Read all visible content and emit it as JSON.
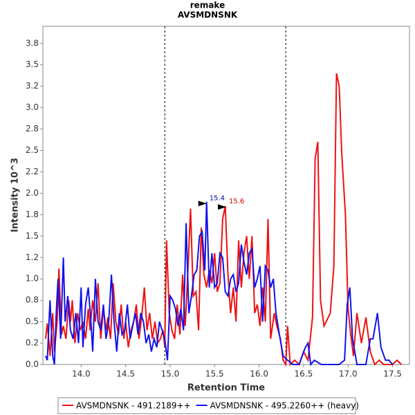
{
  "chart_data": {
    "type": "line",
    "title": "remake",
    "subtitle": "AVSMDNSNK",
    "x_label": "Retention Time",
    "y_label": "Intensity 10^3",
    "xlim": [
      13.57,
      17.69
    ],
    "ylim": [
      0,
      3.95
    ],
    "xticks": [
      {
        "value": 14,
        "label": "14.0"
      },
      14.5,
      {
        "value": 15,
        "label": "15.0"
      },
      15.5,
      {
        "value": 16,
        "label": "16.0"
      },
      16.5,
      {
        "value": 17,
        "label": "17.0"
      },
      17.5
    ],
    "yticks": [
      {
        "value": 0,
        "label": "0.0"
      },
      {
        "value": 0.25,
        "label": "0.2"
      },
      {
        "value": 0.5,
        "label": "0.5"
      },
      {
        "value": 0.75,
        "label": "0.8"
      },
      {
        "value": 1,
        "label": "1.0"
      },
      {
        "value": 1.25,
        "label": "1.2"
      },
      {
        "value": 1.5,
        "label": "1.5"
      },
      {
        "value": 1.75,
        "label": "1.8"
      },
      {
        "value": 2,
        "label": "2.0"
      },
      {
        "value": 2.25,
        "label": "2.2"
      },
      {
        "value": 2.5,
        "label": "2.5"
      },
      {
        "value": 2.75,
        "label": "2.8"
      },
      {
        "value": 3,
        "label": "3.0"
      },
      {
        "value": 3.25,
        "label": "3.2"
      },
      {
        "value": 3.5,
        "label": "3.5"
      },
      {
        "value": 3.75,
        "label": "3.8"
      }
    ],
    "vlines": [
      14.94,
      16.3
    ],
    "annotations": [
      {
        "text": "15.4",
        "x": 15.41,
        "y": 1.88,
        "color": "#0000aa"
      },
      {
        "text": "15.6",
        "x": 15.63,
        "y": 1.84,
        "color": "#cc0000"
      }
    ],
    "series": [
      {
        "name": "AVSMDNSNK - 491.2189++",
        "color": "#ee1111",
        "x": [
          13.6,
          13.62,
          13.65,
          13.68,
          13.7,
          13.73,
          13.75,
          13.78,
          13.8,
          13.83,
          13.86,
          13.88,
          13.9,
          13.93,
          13.96,
          13.99,
          14.02,
          14.05,
          14.08,
          14.1,
          14.13,
          14.16,
          14.19,
          14.22,
          14.25,
          14.28,
          14.3,
          14.33,
          14.36,
          14.39,
          14.42,
          14.45,
          14.48,
          14.5,
          14.53,
          14.56,
          14.59,
          14.62,
          14.65,
          14.68,
          14.71,
          14.74,
          14.77,
          14.8,
          14.83,
          14.86,
          14.89,
          14.92,
          14.94,
          14.96,
          14.99,
          15.02,
          15.05,
          15.08,
          15.11,
          15.14,
          15.17,
          15.2,
          15.23,
          15.26,
          15.29,
          15.32,
          15.35,
          15.38,
          15.41,
          15.44,
          15.47,
          15.5,
          15.53,
          15.56,
          15.59,
          15.62,
          15.65,
          15.68,
          15.71,
          15.74,
          15.77,
          15.8,
          15.83,
          15.86,
          15.89,
          15.92,
          15.95,
          15.98,
          16.01,
          16.04,
          16.07,
          16.1,
          16.13,
          16.17,
          16.2,
          16.24,
          16.27,
          16.3,
          16.32,
          16.35,
          16.4,
          16.45,
          16.5,
          16.55,
          16.6,
          16.63,
          16.66,
          16.69,
          16.73,
          16.8,
          16.84,
          16.87,
          16.9,
          16.93,
          16.97,
          17.0,
          17.03,
          17.06,
          17.1,
          17.15,
          17.2,
          17.25,
          17.3,
          17.35,
          17.4,
          17.45,
          17.5,
          17.55,
          17.6
        ],
        "values": [
          0.3,
          0.48,
          0.1,
          0.6,
          0.15,
          0.5,
          1.12,
          0.35,
          0.45,
          0.3,
          0.75,
          0.5,
          0.75,
          0.25,
          0.6,
          0.4,
          0.5,
          0.3,
          0.65,
          0.4,
          0.75,
          0.5,
          0.95,
          0.3,
          0.65,
          0.4,
          0.55,
          0.3,
          0.95,
          0.5,
          0.35,
          0.7,
          0.3,
          0.5,
          0.2,
          0.4,
          0.5,
          0.7,
          0.3,
          0.55,
          0.9,
          0.4,
          0.6,
          0.3,
          0.5,
          0.25,
          0.3,
          0.4,
          0.2,
          1.45,
          0.6,
          0.4,
          0.3,
          0.7,
          0.35,
          1.05,
          0.45,
          1.1,
          1.82,
          0.8,
          0.85,
          0.4,
          1.6,
          1.05,
          0.9,
          1.1,
          0.95,
          1.3,
          0.85,
          0.95,
          1.7,
          1.85,
          1.05,
          0.6,
          0.9,
          0.5,
          1.45,
          0.9,
          1.3,
          1.5,
          1.0,
          1.5,
          0.6,
          0.7,
          0.45,
          0.9,
          0.5,
          1.7,
          0.3,
          0.6,
          0.45,
          0.3,
          0.05,
          0.0,
          0.45,
          0.0,
          0.05,
          0.0,
          0.15,
          0.05,
          0.55,
          2.4,
          2.6,
          0.75,
          0.45,
          0.6,
          1.15,
          3.4,
          3.25,
          2.45,
          1.75,
          0.65,
          0.35,
          0.1,
          0.6,
          0.25,
          0.55,
          0.15,
          0.0,
          0.05,
          0.0,
          0.0,
          0.0,
          0.05,
          0.0
        ]
      },
      {
        "name": "AVSMDNSNK - 495.2260++ (heavy)",
        "color": "#1111ee",
        "x": [
          13.6,
          13.62,
          13.65,
          13.68,
          13.7,
          13.72,
          13.74,
          13.77,
          13.8,
          13.82,
          13.85,
          13.88,
          13.91,
          13.94,
          13.97,
          14.0,
          14.02,
          14.05,
          14.08,
          14.11,
          14.13,
          14.16,
          14.19,
          14.22,
          14.25,
          14.28,
          14.31,
          14.34,
          14.37,
          14.4,
          14.43,
          14.46,
          14.49,
          14.52,
          14.55,
          14.58,
          14.61,
          14.64,
          14.67,
          14.7,
          14.73,
          14.76,
          14.79,
          14.82,
          14.85,
          14.88,
          14.91,
          14.94,
          14.97,
          15.0,
          15.03,
          15.06,
          15.09,
          15.12,
          15.15,
          15.18,
          15.21,
          15.24,
          15.27,
          15.3,
          15.33,
          15.36,
          15.39,
          15.41,
          15.44,
          15.47,
          15.5,
          15.53,
          15.56,
          15.59,
          15.62,
          15.65,
          15.68,
          15.71,
          15.74,
          15.77,
          15.8,
          15.83,
          15.86,
          15.89,
          15.92,
          15.95,
          15.98,
          16.01,
          16.04,
          16.07,
          16.1,
          16.13,
          16.16,
          16.19,
          16.22,
          16.27,
          16.32,
          16.38,
          16.45,
          16.52,
          16.55,
          16.58,
          16.62,
          16.7,
          16.78,
          16.85,
          16.9,
          16.96,
          16.99,
          17.02,
          17.05,
          17.1,
          17.15,
          17.2,
          17.25,
          17.28,
          17.33,
          17.37,
          17.42,
          17.46,
          17.5
        ],
        "values": [
          0.1,
          0.05,
          0.75,
          0.1,
          0.0,
          0.6,
          1.0,
          0.3,
          1.25,
          0.5,
          0.8,
          0.4,
          0.3,
          0.6,
          0.25,
          0.9,
          0.2,
          0.7,
          0.9,
          0.5,
          0.15,
          1.0,
          0.5,
          0.4,
          0.7,
          0.3,
          0.5,
          1.05,
          0.5,
          0.15,
          0.6,
          0.35,
          0.4,
          0.7,
          0.3,
          0.45,
          0.6,
          0.35,
          0.6,
          0.5,
          0.25,
          0.35,
          0.15,
          0.3,
          0.2,
          0.5,
          0.4,
          0.3,
          0.05,
          0.8,
          0.75,
          0.65,
          0.45,
          0.65,
          0.4,
          1.65,
          0.6,
          0.8,
          1.05,
          1.1,
          1.5,
          1.55,
          1.1,
          1.9,
          0.9,
          1.3,
          0.9,
          0.95,
          1.3,
          1.25,
          0.85,
          0.8,
          1.0,
          1.05,
          0.85,
          0.95,
          1.4,
          1.2,
          1.05,
          1.3,
          1.35,
          0.9,
          1.0,
          1.15,
          0.5,
          1.15,
          1.1,
          0.9,
          1.0,
          0.6,
          0.4,
          0.1,
          0.05,
          0.0,
          0.0,
          0.2,
          0.25,
          0.0,
          0.05,
          0.0,
          0.0,
          0.0,
          0.0,
          0.05,
          0.7,
          0.9,
          0.3,
          0.0,
          0.0,
          0.0,
          0.3,
          0.3,
          0.6,
          0.2,
          0.05,
          0.05,
          0.0
        ]
      }
    ]
  }
}
